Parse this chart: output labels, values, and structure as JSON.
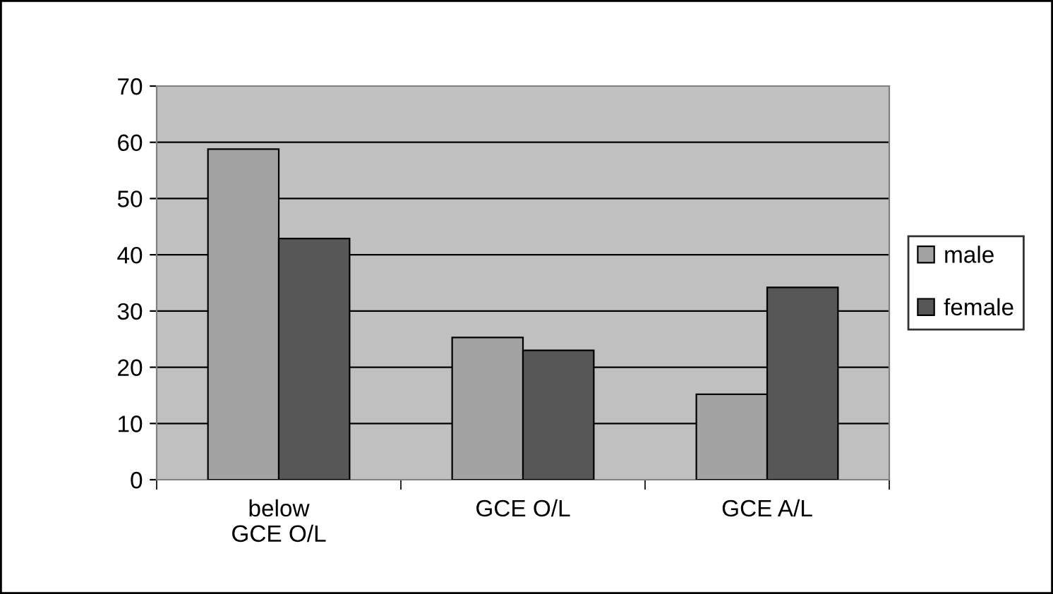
{
  "chart_data": {
    "type": "bar",
    "categories": [
      "below\nGCE O/L",
      "GCE O/L",
      "GCE A/L"
    ],
    "series": [
      {
        "name": "male",
        "color": "#a3a3a3",
        "values": [
          58.8,
          25.3,
          15.2
        ]
      },
      {
        "name": "female",
        "color": "#575757",
        "values": [
          42.9,
          23.0,
          34.2
        ]
      }
    ],
    "ylim": [
      0,
      70
    ],
    "yticks": [
      0,
      10,
      20,
      30,
      40,
      50,
      60,
      70
    ],
    "grid": "y",
    "legend": "right"
  }
}
